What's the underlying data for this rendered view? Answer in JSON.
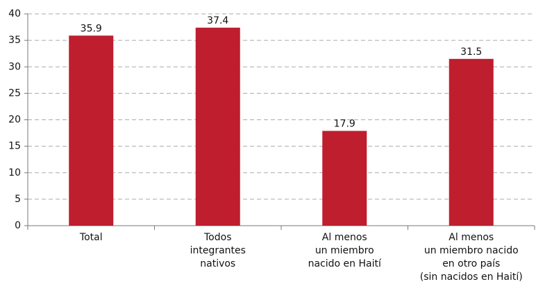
{
  "chart_data": {
    "type": "bar",
    "categories": [
      "Total",
      "Todos\nintegrantes\nnativos",
      "Al menos\nun miembro\nnacido en Haití",
      "Al menos\nun miembro nacido\nen otro país\n(sin nacidos en Haití)"
    ],
    "values": [
      35.9,
      37.4,
      17.9,
      31.5
    ],
    "color": "#be1e2d",
    "ylim": [
      0,
      40
    ],
    "yticks": [
      0,
      5,
      10,
      15,
      20,
      25,
      30,
      35,
      40
    ],
    "grid": true
  }
}
